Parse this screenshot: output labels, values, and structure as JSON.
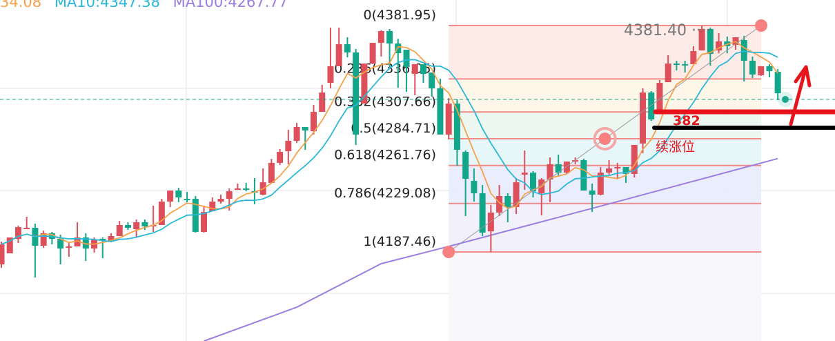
{
  "legend": {
    "ma5": "34.08",
    "ma10": "MA10:4347.38",
    "ma100": "MA100:4267.77"
  },
  "colors": {
    "up": "#dd4f5b",
    "down": "#12a68a",
    "ma5": "#f7a04a",
    "ma10": "#2ab8d8",
    "ma100": "#9b7ee0",
    "fib_line": "#f28a8a",
    "annotation_red": "#e8141c",
    "annotation_black": "#000000"
  },
  "chart_data": {
    "type": "candlestick",
    "ylim": [
      4090,
      4390
    ],
    "grid": true,
    "candles_ohlc": [
      [
        4176.8,
        4196.3,
        4173.8,
        4194.0
      ],
      [
        4186.3,
        4199.9,
        4186.3,
        4199.9
      ],
      [
        4198.7,
        4210.0,
        4195.2,
        4208.8
      ],
      [
        4207.6,
        4217.7,
        4207.6,
        4208.2
      ],
      [
        4208.2,
        4211.8,
        4165.5,
        4192.8
      ],
      [
        4192.8,
        4205.8,
        4191.0,
        4203.5
      ],
      [
        4203.5,
        4204.7,
        4194.0,
        4198.7
      ],
      [
        4198.7,
        4202.3,
        4176.8,
        4190.4
      ],
      [
        4191.0,
        4196.3,
        4183.3,
        4192.2
      ],
      [
        4192.2,
        4213.0,
        4192.2,
        4199.9
      ],
      [
        4199.9,
        4203.5,
        4179.7,
        4190.4
      ],
      [
        4190.4,
        4199.9,
        4186.9,
        4198.1
      ],
      [
        4198.7,
        4199.9,
        4182.1,
        4197.5
      ],
      [
        4196.9,
        4203.5,
        4195.8,
        4201.1
      ],
      [
        4201.1,
        4214.1,
        4201.1,
        4210.6
      ],
      [
        4210.6,
        4213.0,
        4206.4,
        4208.2
      ],
      [
        4207.0,
        4215.3,
        4200.5,
        4213.0
      ],
      [
        4213.0,
        4215.3,
        4206.4,
        4209.4
      ],
      [
        4209.4,
        4227.2,
        4204.7,
        4210.6
      ],
      [
        4210.6,
        4233.1,
        4210.6,
        4230.7
      ],
      [
        4230.7,
        4240.2,
        4226.0,
        4240.2
      ],
      [
        4240.2,
        4242.6,
        4230.2,
        4234.3
      ],
      [
        4233.1,
        4239.0,
        4230.2,
        4231.9
      ],
      [
        4233.1,
        4235.5,
        4204.1,
        4204.7
      ],
      [
        4204.7,
        4227.2,
        4204.1,
        4221.8
      ],
      [
        4222.4,
        4234.3,
        4222.4,
        4230.7
      ],
      [
        4230.7,
        4236.7,
        4229.0,
        4233.1
      ],
      [
        4233.1,
        4242.0,
        4223.0,
        4239.6
      ],
      [
        4240.8,
        4246.2,
        4240.8,
        4242.0
      ],
      [
        4242.0,
        4246.8,
        4239.6,
        4240.8
      ],
      [
        4239.6,
        4250.9,
        4228.4,
        4238.5
      ],
      [
        4236.7,
        4259.2,
        4236.1,
        4247.3
      ],
      [
        4246.8,
        4267.5,
        4246.8,
        4264.0
      ],
      [
        4264.0,
        4275.8,
        4262.2,
        4273.4
      ],
      [
        4274.0,
        4292.4,
        4262.8,
        4282.9
      ],
      [
        4282.9,
        4298.3,
        4281.1,
        4294.8
      ],
      [
        4294.8,
        4294.8,
        4275.2,
        4291.8
      ],
      [
        4291.2,
        4313.8,
        4288.3,
        4307.8
      ],
      [
        4307.8,
        4331.0,
        4307.8,
        4324.4
      ],
      [
        4332.7,
        4380.2,
        4328.0,
        4347.0
      ],
      [
        4347.0,
        4380.2,
        4347.0,
        4365.9
      ],
      [
        4365.9,
        4371.9,
        4354.7,
        4358.8
      ],
      [
        4358.8,
        4361.8,
        4279.4,
        4288.3
      ],
      [
        4314.9,
        4349.3,
        4314.9,
        4349.3
      ],
      [
        4349.3,
        4367.1,
        4348.8,
        4367.1
      ],
      [
        4367.1,
        4377.8,
        4355.3,
        4377.2
      ],
      [
        4377.2,
        4379.0,
        4346.4,
        4366.5
      ],
      [
        4366.5,
        4370.7,
        4328.6,
        4358.2
      ],
      [
        4361.2,
        4361.2,
        4325.0,
        4346.4
      ],
      [
        4340.4,
        4348.8,
        4322.1,
        4348.8
      ],
      [
        4348.8,
        4348.8,
        4332.7,
        4340.4
      ],
      [
        4341.6,
        4341.6,
        4320.9,
        4328.0
      ],
      [
        4328.0,
        4336.3,
        4288.3,
        4288.3
      ],
      [
        4288.3,
        4319.7,
        4284.1,
        4314.9
      ],
      [
        4314.9,
        4318.5,
        4261.6,
        4275.2
      ],
      [
        4273.4,
        4274.6,
        4218.3,
        4250.3
      ],
      [
        4248.5,
        4259.2,
        4230.7,
        4237.9
      ],
      [
        4237.9,
        4245.0,
        4201.1,
        4204.1
      ],
      [
        4205.2,
        4227.8,
        4187.5,
        4221.3
      ],
      [
        4221.3,
        4245.0,
        4218.3,
        4235.5
      ],
      [
        4235.5,
        4237.9,
        4213.0,
        4226.0
      ],
      [
        4226.0,
        4250.9,
        4220.1,
        4247.3
      ],
      [
        4253.9,
        4274.6,
        4240.8,
        4255.6
      ],
      [
        4255.6,
        4256.8,
        4234.3,
        4239.6
      ],
      [
        4237.9,
        4250.9,
        4218.9,
        4249.7
      ],
      [
        4249.7,
        4268.7,
        4230.2,
        4262.8
      ],
      [
        4262.8,
        4271.1,
        4253.3,
        4255.6
      ],
      [
        4255.6,
        4265.1,
        4254.5,
        4265.1
      ],
      [
        4265.1,
        4268.7,
        4262.8,
        4266.3
      ],
      [
        4266.3,
        4267.5,
        4240.2,
        4240.2
      ],
      [
        4240.2,
        4246.2,
        4221.8,
        4236.7
      ],
      [
        4236.7,
        4260.4,
        4236.1,
        4255.6
      ],
      [
        4255.6,
        4266.3,
        4253.9,
        4259.2
      ],
      [
        4259.2,
        4264.0,
        4250.3,
        4260.4
      ],
      [
        4260.4,
        4260.4,
        4246.8,
        4254.5
      ],
      [
        4254.5,
        4279.4,
        4251.5,
        4279.4
      ],
      [
        4280.6,
        4328.0,
        4272.3,
        4324.4
      ],
      [
        4324.4,
        4325.6,
        4300.1,
        4301.3
      ],
      [
        4309.0,
        4335.1,
        4306.1,
        4332.7
      ],
      [
        4333.3,
        4356.5,
        4333.3,
        4349.3
      ],
      [
        4349.3,
        4351.7,
        4343.4,
        4348.8
      ],
      [
        4348.8,
        4351.7,
        4341.6,
        4348.2
      ],
      [
        4348.8,
        4364.2,
        4348.8,
        4360.0
      ],
      [
        4360.6,
        4381.9,
        4360.6,
        4379.0
      ],
      [
        4379.0,
        4380.2,
        4347.6,
        4357.6
      ],
      [
        4360.6,
        4375.4,
        4358.2,
        4368.3
      ],
      [
        4368.3,
        4372.5,
        4358.2,
        4364.2
      ],
      [
        4365.4,
        4371.9,
        4361.2,
        4371.9
      ],
      [
        4369.5,
        4373.1,
        4333.9,
        4351.7
      ],
      [
        4351.7,
        4355.3,
        4336.9,
        4339.9
      ],
      [
        4339.3,
        4347.0,
        4338.7,
        4347.0
      ],
      [
        4347.0,
        4348.8,
        4337.5,
        4342.8
      ],
      [
        4342.2,
        4344.6,
        4317.9,
        4323.8
      ]
    ],
    "ma100_points": [
      [
        24,
        4110.9
      ],
      [
        35,
        4140.0
      ],
      [
        45,
        4177.4
      ],
      [
        53,
        4192.2
      ],
      [
        73,
        4230.7
      ],
      [
        92,
        4267.7
      ]
    ],
    "current_price": 4318.5,
    "fibonacci": {
      "start_index": 53,
      "end_index": 90,
      "levels": [
        {
          "ratio": 0,
          "price": 4381.95,
          "label": "0(4381.95)",
          "fill": "#fde9e4"
        },
        {
          "ratio": 0.236,
          "price": 4336.05,
          "label": "0.236(4336.05)",
          "fill": "#fdf5e7"
        },
        {
          "ratio": 0.382,
          "price": 4307.66,
          "label": "0.382(4307.66)",
          "fill": "#e9f6ee"
        },
        {
          "ratio": 0.5,
          "price": 4284.71,
          "label": "0.5(4284.71)",
          "fill": "#e4f6f8"
        },
        {
          "ratio": 0.618,
          "price": 4261.76,
          "label": "0.618(4261.76)",
          "fill": "#e7ebfc"
        },
        {
          "ratio": 0.786,
          "price": 4229.08,
          "label": "0.786(4229.08)",
          "fill": "#f1eefa"
        },
        {
          "ratio": 1,
          "price": 4187.46,
          "label": "1(4187.46)",
          "fill": "#f8f8fa"
        }
      ],
      "high_marker_label": "4381.40 ····"
    },
    "annotations": {
      "red_line_label": "382",
      "black_line_label": "续涨位"
    }
  }
}
